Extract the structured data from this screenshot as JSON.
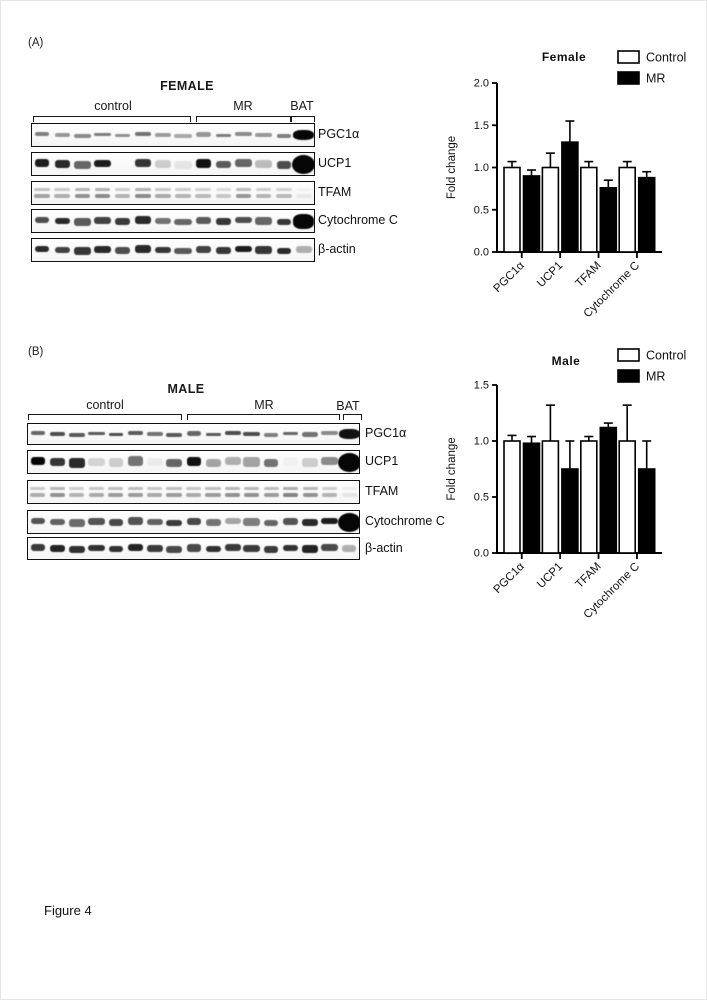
{
  "figure_label": "Figure 4",
  "colors": {
    "control_fill": "#ffffff",
    "mr_fill": "#000000",
    "axis": "#000000",
    "band": "#060606"
  },
  "panels": [
    {
      "label": "(A)",
      "blot": {
        "title": "FEMALE",
        "groups": [
          "control",
          "MR",
          "BAT"
        ],
        "rows": [
          {
            "label": "PGC1α",
            "height": 4,
            "doublet": false,
            "bat": "big-band",
            "bands": [
              0.5,
              0.4,
              0.45,
              0.5,
              0.42,
              0.55,
              0.38,
              0.33,
              0.4,
              0.5,
              0.45,
              0.4,
              0.5,
              1
            ]
          },
          {
            "label": "UCP1",
            "height": 8,
            "doublet": false,
            "bat": "blob",
            "bands": [
              0.9,
              0.85,
              0.6,
              0.9,
              0,
              0.8,
              0.18,
              0.08,
              0.95,
              0.65,
              0.6,
              0.25,
              0.7,
              1
            ]
          },
          {
            "label": "TFAM",
            "height": 3,
            "doublet": true,
            "bat": "normal",
            "bands": [
              0.35,
              0.3,
              0.42,
              0.45,
              0.28,
              0.45,
              0.32,
              0.28,
              0.25,
              0.2,
              0.4,
              0.28,
              0.25,
              0.06
            ]
          },
          {
            "label": "Cytochrome C",
            "height": 7,
            "doublet": false,
            "bat": "big-band",
            "bands": [
              0.7,
              0.85,
              0.65,
              0.75,
              0.78,
              0.85,
              0.55,
              0.6,
              0.65,
              0.8,
              0.7,
              0.6,
              0.8,
              1
            ]
          },
          {
            "label": "β-actin",
            "height": 7,
            "doublet": false,
            "bat": "normal",
            "bands": [
              0.85,
              0.75,
              0.8,
              0.85,
              0.7,
              0.85,
              0.8,
              0.65,
              0.75,
              0.8,
              0.9,
              0.8,
              0.85,
              0.3
            ]
          }
        ]
      }
    },
    {
      "label": "(B)",
      "blot": {
        "title": "MALE",
        "groups": [
          "control",
          "MR",
          "BAT"
        ],
        "rows": [
          {
            "label": "PGC1α",
            "height": 4,
            "doublet": false,
            "bat": "big-band",
            "bands": [
              0.6,
              0.7,
              0.65,
              0.65,
              0.7,
              0.65,
              0.55,
              0.65,
              0.6,
              0.65,
              0.7,
              0.7,
              0.5,
              0.6,
              0.55,
              0.45,
              0.95
            ]
          },
          {
            "label": "UCP1",
            "height": 9,
            "doublet": false,
            "bat": "blob",
            "bands": [
              1,
              0.8,
              0.85,
              0.15,
              0.18,
              0.55,
              0.05,
              0.6,
              0.95,
              0.35,
              0.3,
              0.35,
              0.55,
              0.03,
              0.18,
              0.45,
              1
            ]
          },
          {
            "label": "TFAM",
            "height": 3,
            "doublet": true,
            "bat": "normal",
            "bands": [
              0.3,
              0.42,
              0.28,
              0.32,
              0.38,
              0.38,
              0.32,
              0.38,
              0.32,
              0.38,
              0.42,
              0.42,
              0.38,
              0.48,
              0.42,
              0.28,
              0.08
            ]
          },
          {
            "label": "Cytochrome C",
            "height": 7,
            "doublet": false,
            "bat": "blob",
            "bands": [
              0.68,
              0.62,
              0.58,
              0.68,
              0.72,
              0.68,
              0.62,
              0.78,
              0.72,
              0.55,
              0.35,
              0.5,
              0.6,
              0.68,
              0.85,
              0.9,
              1
            ]
          },
          {
            "label": "β-actin",
            "height": 7,
            "doublet": false,
            "bat": "normal",
            "bands": [
              0.78,
              0.88,
              0.82,
              0.82,
              0.82,
              0.88,
              0.78,
              0.72,
              0.72,
              0.82,
              0.78,
              0.78,
              0.78,
              0.82,
              0.88,
              0.72,
              0.3
            ]
          }
        ]
      }
    }
  ],
  "chart_data": [
    {
      "type": "bar",
      "title": "Female",
      "ylabel": "Fold change",
      "ylim": [
        0,
        2.0
      ],
      "yticks": [
        0,
        0.5,
        1.0,
        1.5,
        2.0
      ],
      "categories": [
        "PGC1α",
        "UCP1",
        "TFAM",
        "Cytochrome C"
      ],
      "series": [
        {
          "name": "Control",
          "fill": "#ffffff",
          "values": [
            1.0,
            1.0,
            1.0,
            1.0
          ],
          "errors": [
            0.07,
            0.17,
            0.07,
            0.07
          ]
        },
        {
          "name": "MR",
          "fill": "#000000",
          "values": [
            0.9,
            1.3,
            0.76,
            0.88
          ],
          "errors": [
            0.07,
            0.25,
            0.09,
            0.07
          ]
        }
      ],
      "error_bars": "upper",
      "legend_position": "top-right",
      "grid": false
    },
    {
      "type": "bar",
      "title": "Male",
      "ylabel": "Fold change",
      "ylim": [
        0,
        1.5
      ],
      "yticks": [
        0,
        0.5,
        1.0,
        1.5
      ],
      "categories": [
        "PGC1α",
        "UCP1",
        "TFAM",
        "Cytochrome C"
      ],
      "series": [
        {
          "name": "Control",
          "fill": "#ffffff",
          "values": [
            1.0,
            1.0,
            1.0,
            1.0
          ],
          "errors": [
            0.05,
            0.32,
            0.04,
            0.32
          ]
        },
        {
          "name": "MR",
          "fill": "#000000",
          "values": [
            0.98,
            0.75,
            1.12,
            0.75
          ],
          "errors": [
            0.06,
            0.25,
            0.04,
            0.25
          ]
        }
      ],
      "error_bars": "upper",
      "legend_position": "top-right",
      "grid": false
    }
  ]
}
